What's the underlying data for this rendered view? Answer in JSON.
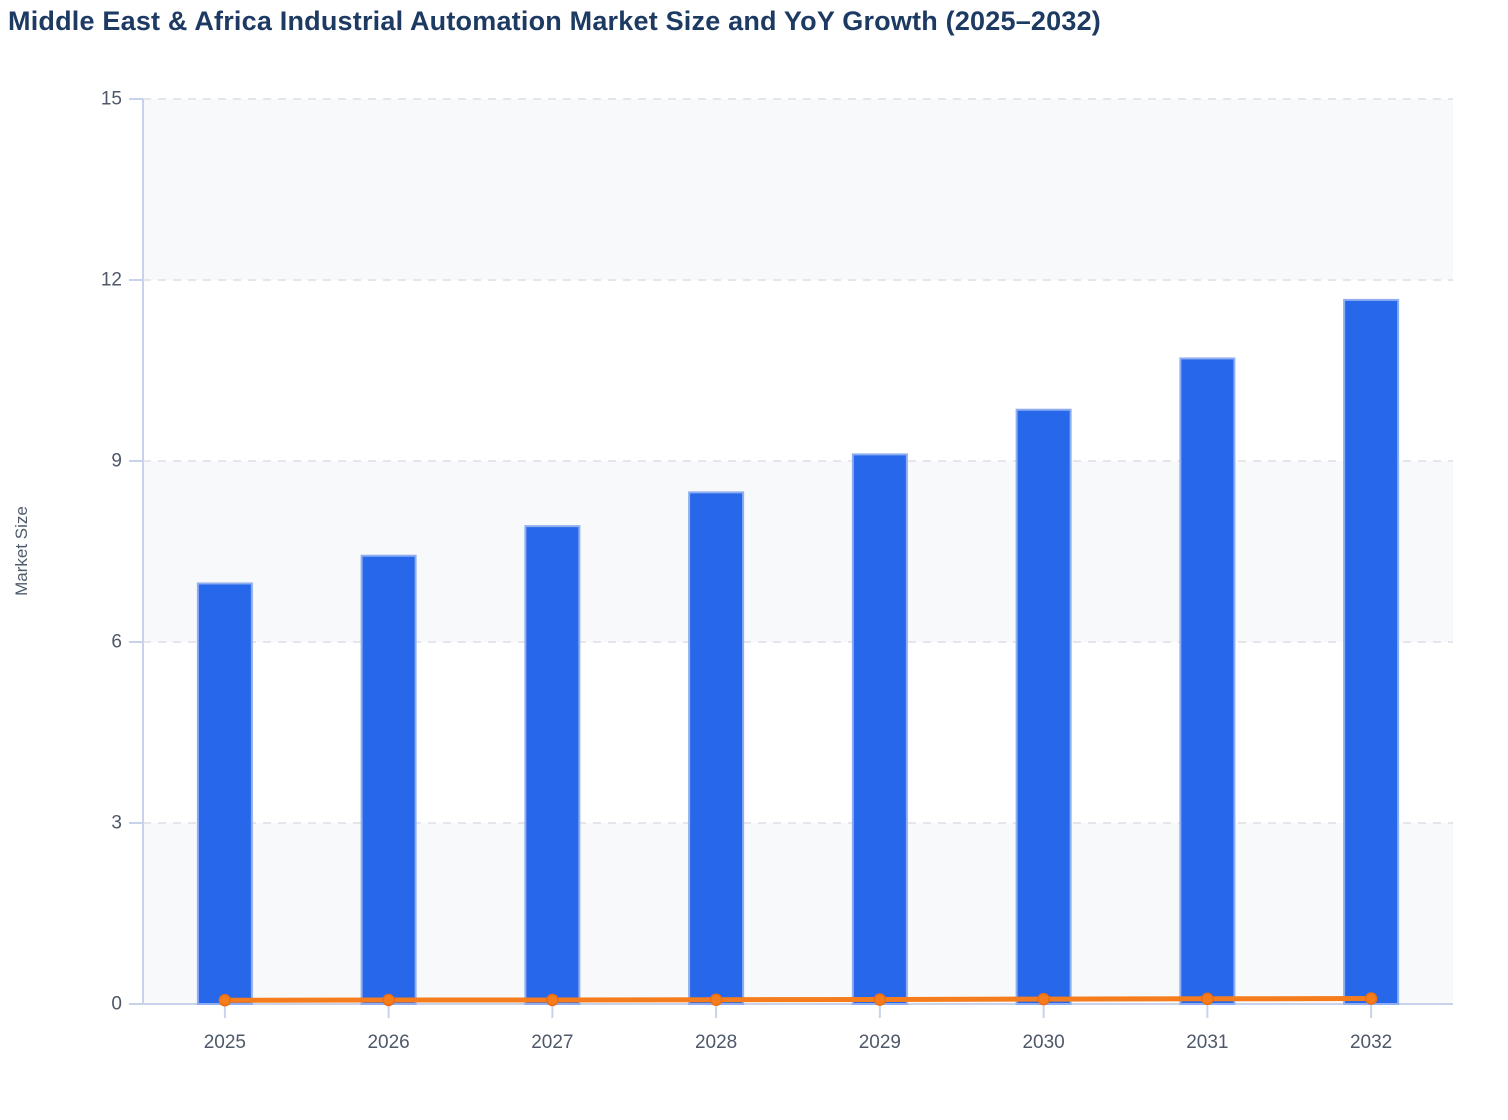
{
  "title": "Middle East & Africa Industrial Automation Market Size and YoY Growth (2025–2032)",
  "chart_data": {
    "type": "bar",
    "subtype": "bar-with-line-overlay",
    "categories": [
      "2025",
      "2026",
      "2027",
      "2028",
      "2029",
      "2030",
      "2031",
      "2032"
    ],
    "series": [
      {
        "name": "Market Size",
        "type": "bar",
        "values": [
          6.97,
          7.43,
          7.92,
          8.48,
          9.11,
          9.85,
          10.7,
          11.67
        ]
      },
      {
        "name": "YoY Growth",
        "type": "line",
        "values": [
          0.062,
          0.066,
          0.066,
          0.071,
          0.074,
          0.081,
          0.086,
          0.091
        ],
        "note": "plotted as fractions on the same left axis, so the line hugs the zero baseline"
      }
    ],
    "title": "Middle East & Africa Industrial Automation Market Size and YoY Growth (2025–2032)",
    "xlabel": "",
    "ylabel": "Market Size",
    "yticks": [
      0,
      3,
      6,
      9,
      12,
      15
    ],
    "ylim": [
      0,
      15
    ],
    "grid": "horizontal dashed lines at each tick",
    "band_fill_intervals": [
      [
        0,
        3
      ],
      [
        6,
        9
      ],
      [
        12,
        15
      ]
    ],
    "legend": "none"
  },
  "colors": {
    "title_text": "#1d3a63",
    "tick_label": "#4e5869",
    "axis_title": "#4f5a6b",
    "bar_fill": "#2767e9",
    "bar_stroke": "#8fadf1",
    "line_color": "#f57d1d",
    "marker_stroke": "#ed6d10",
    "axis_line": "#c9d2eb",
    "grid_dash": "#e4e6eb",
    "band_fill": "#f8f9fb",
    "background": "#ffffff"
  }
}
